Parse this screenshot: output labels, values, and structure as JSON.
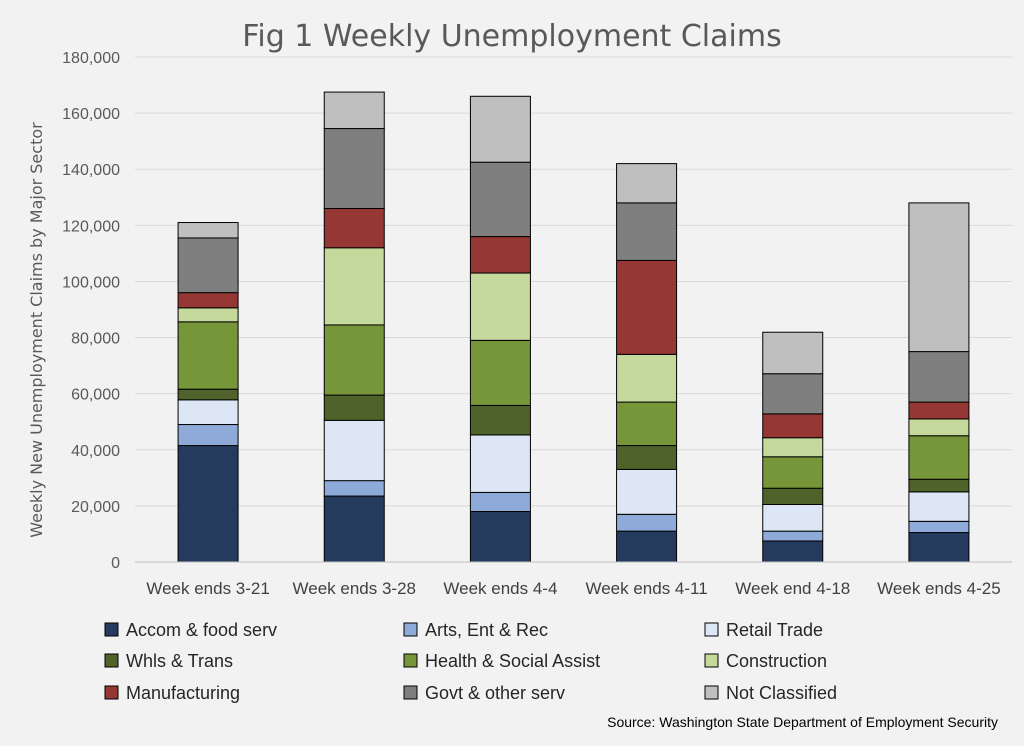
{
  "chart_data": {
    "type": "bar",
    "stacked": true,
    "title": "Fig 1 Weekly Unemployment Claims",
    "ylabel": "Weekly New Unemployment Claims by Major Sector",
    "xlabel": "",
    "ylim": [
      0,
      180000
    ],
    "yticks": [
      0,
      20000,
      40000,
      60000,
      80000,
      100000,
      120000,
      140000,
      160000,
      180000
    ],
    "ytick_labels": [
      "0",
      "20,000",
      "40,000",
      "60,000",
      "80,000",
      "100,000",
      "120,000",
      "140,000",
      "160,000",
      "180,000"
    ],
    "grid": true,
    "legend_position": "bottom",
    "categories": [
      "Week ends 3-21",
      "Week ends 3-28",
      "Week ends 4-4",
      "Week ends 4-11",
      "Week end 4-18",
      "Week ends 4-25"
    ],
    "series": [
      {
        "name": "Accom & food serv",
        "color": "#243b5e",
        "values": [
          41500,
          23500,
          18000,
          11000,
          7500,
          10500
        ]
      },
      {
        "name": "Arts, Ent & Rec",
        "color": "#8eaad9",
        "values": [
          7500,
          5500,
          6800,
          6000,
          3500,
          4000
        ]
      },
      {
        "name": "Retail Trade",
        "color": "#dce6f4",
        "values": [
          8800,
          21500,
          20500,
          16000,
          9500,
          10500
        ]
      },
      {
        "name": "Whls & Trans",
        "color": "#4e6229",
        "values": [
          3800,
          9000,
          10500,
          8500,
          5800,
          4500
        ]
      },
      {
        "name": "Health & Social Assist",
        "color": "#77963a",
        "values": [
          24000,
          25000,
          23200,
          15500,
          11200,
          15500
        ]
      },
      {
        "name": "Construction",
        "color": "#c5d99c",
        "values": [
          5000,
          27500,
          24000,
          17000,
          6800,
          6000
        ]
      },
      {
        "name": "Manufacturing",
        "color": "#953735",
        "values": [
          5400,
          14000,
          13000,
          33500,
          8500,
          6000
        ]
      },
      {
        "name": "Govt & other serv",
        "color": "#7f7f7f",
        "values": [
          19500,
          28500,
          26500,
          20500,
          14300,
          18000
        ]
      },
      {
        "name": "Not Classified",
        "color": "#bfbfbf",
        "values": [
          5500,
          13000,
          23500,
          14000,
          14800,
          53000
        ]
      }
    ],
    "source": "Source: Washington State Department of Employment Security"
  }
}
